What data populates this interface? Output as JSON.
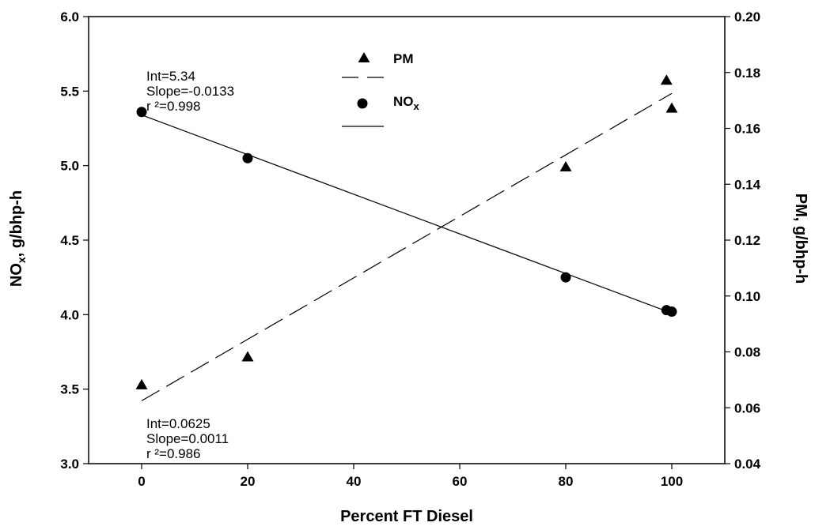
{
  "chart_data": {
    "type": "scatter",
    "x": [
      0,
      20,
      80,
      99,
      100
    ],
    "xlabel": "Percent FT Diesel",
    "xlim": [
      -10,
      110
    ],
    "xticks": [
      "0",
      "20",
      "40",
      "60",
      "80",
      "100"
    ],
    "ylabel_left_main": "NO",
    "ylabel_left_sub": "x",
    "ylabel_left_rest": ", g/bhp-h",
    "ylim_left": [
      3.0,
      6.0
    ],
    "yticks_left": [
      "3.0",
      "3.5",
      "4.0",
      "4.5",
      "5.0",
      "5.5",
      "6.0"
    ],
    "ylabel_right": "PM, g/bhp-h",
    "ylim_right": [
      0.04,
      0.2
    ],
    "yticks_right": [
      "0.04",
      "0.06",
      "0.08",
      "0.10",
      "0.12",
      "0.14",
      "0.16",
      "0.18",
      "0.20"
    ],
    "grid": false,
    "legend_position": "top-center",
    "series": [
      {
        "name": "PM",
        "name_sub": "",
        "axis": "right",
        "marker": "triangle",
        "line_style": "dashed",
        "x": [
          0,
          20,
          80,
          99,
          100
        ],
        "values": [
          0.068,
          0.078,
          0.146,
          0.177,
          0.167
        ],
        "fit": {
          "intercept": 0.0625,
          "slope": 0.0011
        }
      },
      {
        "name": "NO",
        "name_sub": "x",
        "axis": "left",
        "marker": "circle",
        "line_style": "solid",
        "x": [
          0,
          20,
          80,
          99,
          100
        ],
        "values": [
          5.36,
          5.05,
          4.25,
          4.03,
          4.02
        ],
        "fit": {
          "intercept": 5.34,
          "slope": -0.0133
        }
      }
    ],
    "annotations": {
      "nox_fit": [
        "Int=5.34",
        "Slope=-0.0133",
        "r ²=0.998"
      ],
      "pm_fit": [
        "Int=0.0625",
        "Slope=0.0011",
        "r ²=0.986"
      ]
    }
  }
}
